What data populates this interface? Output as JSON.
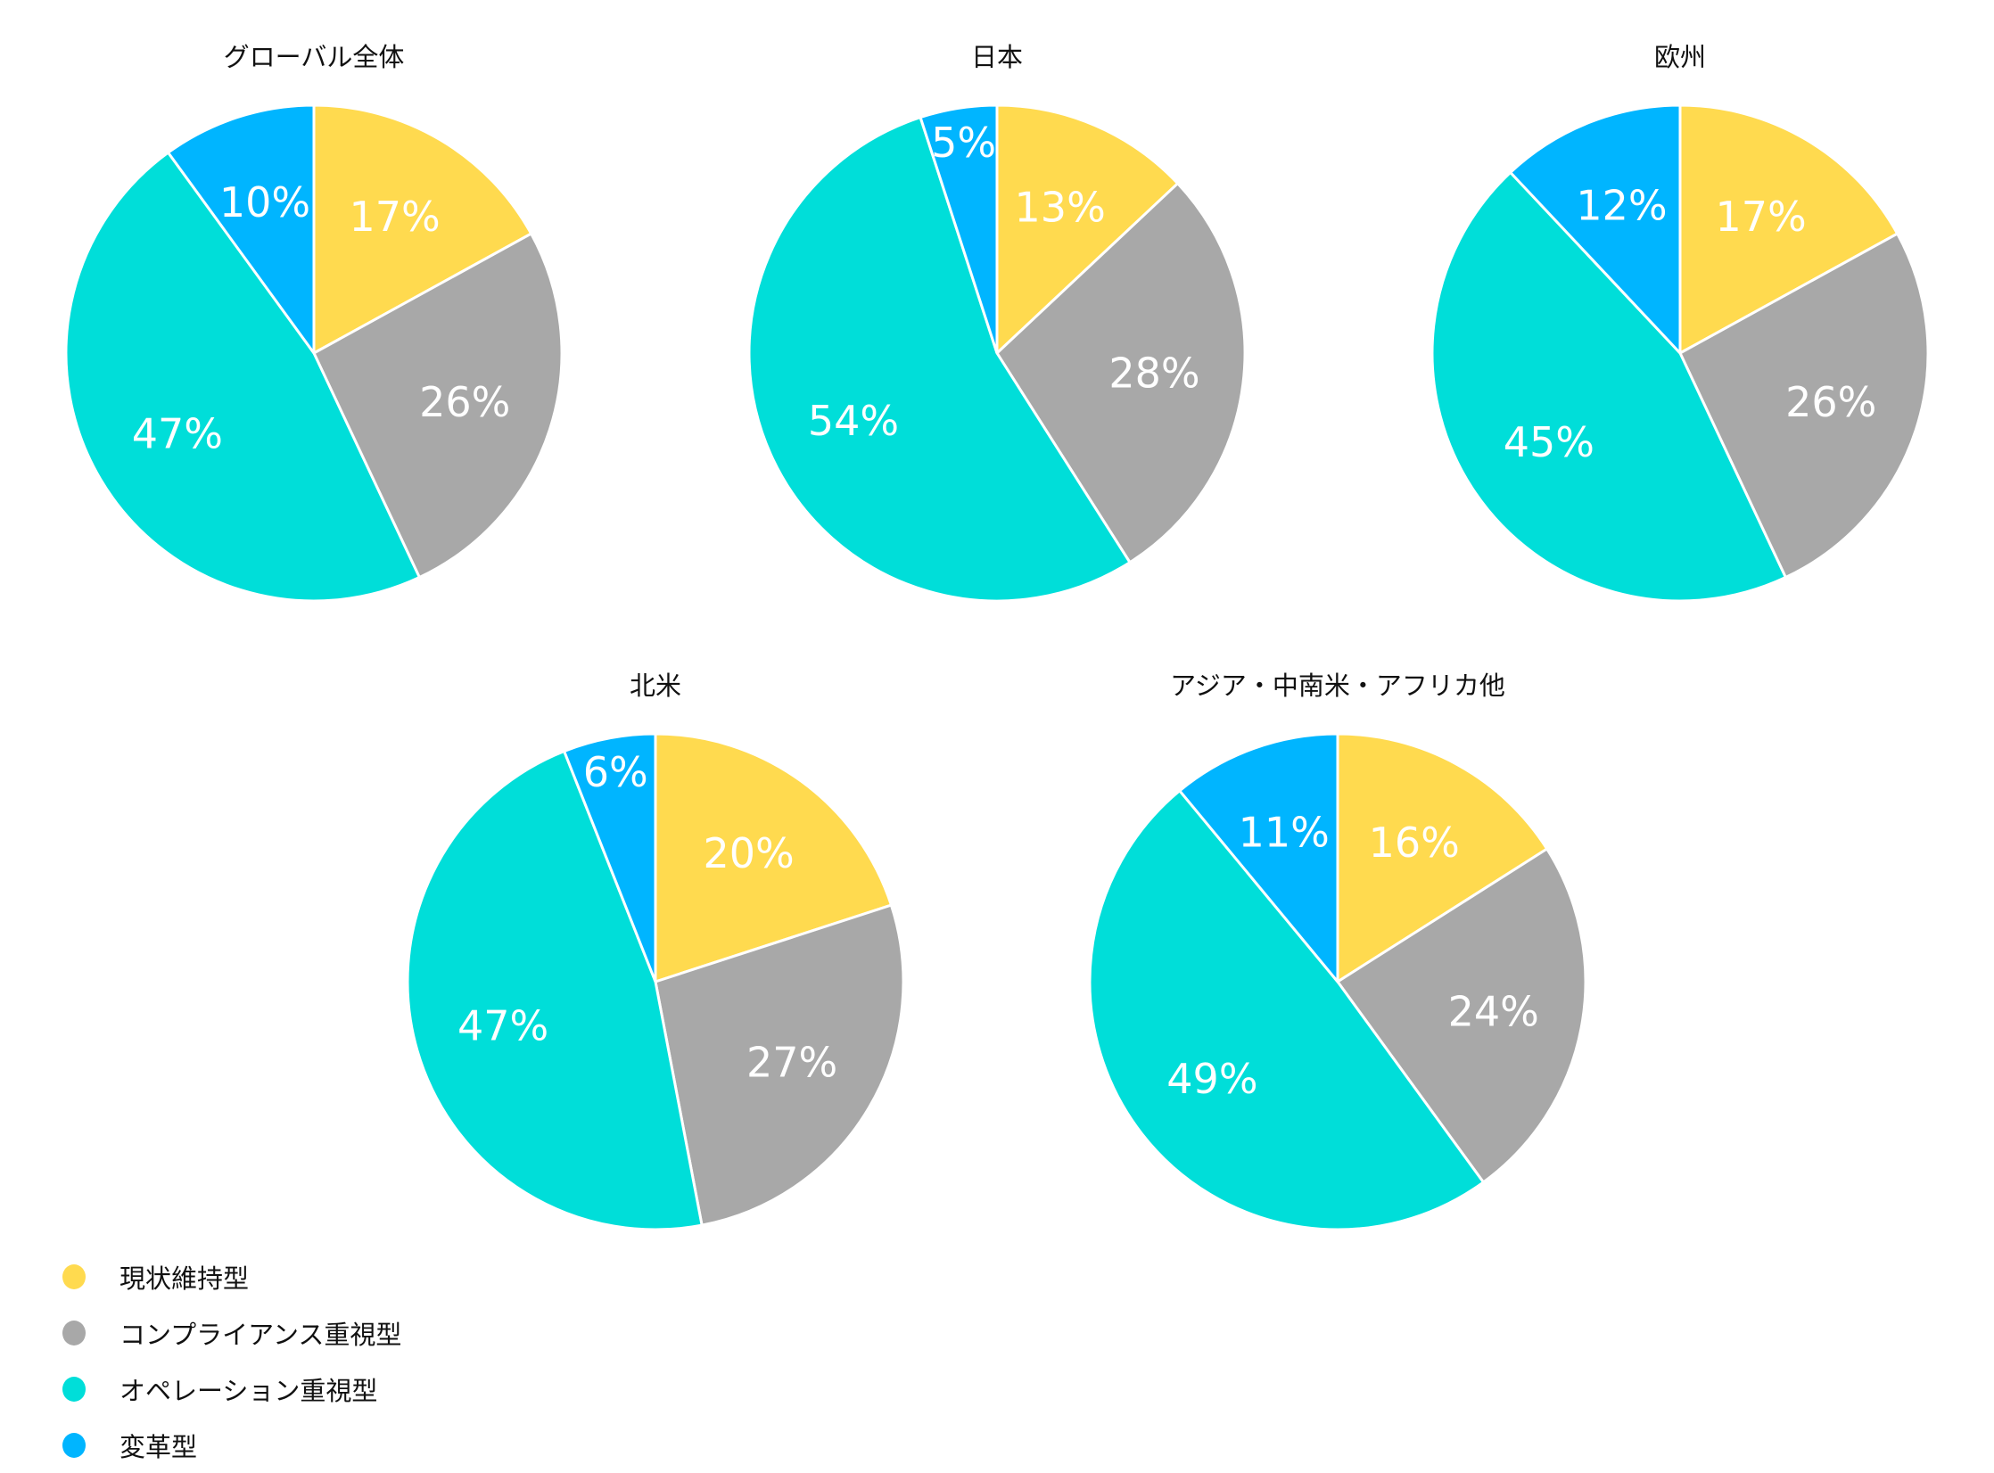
{
  "chart_data": {
    "type": "pie",
    "categories": [
      "現状維持型",
      "コンプライアンス重視型",
      "オペレーション重視型",
      "変革型"
    ],
    "colors": [
      "#FFDA4F",
      "#A8A8A8",
      "#00DED9",
      "#00B5FF"
    ],
    "legend_position": "bottom-left",
    "charts": [
      {
        "title": "グローバル全体",
        "values": [
          17,
          26,
          47,
          10
        ],
        "labels": [
          "17%",
          "26%",
          "47%",
          "10%"
        ]
      },
      {
        "title": "日本",
        "values": [
          13,
          28,
          54,
          5
        ],
        "labels": [
          "13%",
          "28%",
          "54%",
          "5%"
        ]
      },
      {
        "title": "欧州",
        "values": [
          17,
          26,
          45,
          12
        ],
        "labels": [
          "17%",
          "26%",
          "45%",
          "12%"
        ]
      },
      {
        "title": "北米",
        "values": [
          20,
          27,
          47,
          6
        ],
        "labels": [
          "20%",
          "27%",
          "47%",
          "6%"
        ]
      },
      {
        "title": "アジア・中南米・アフリカ他",
        "values": [
          16,
          24,
          49,
          11
        ],
        "labels": [
          "16%",
          "24%",
          "49%",
          "11%"
        ]
      }
    ]
  }
}
